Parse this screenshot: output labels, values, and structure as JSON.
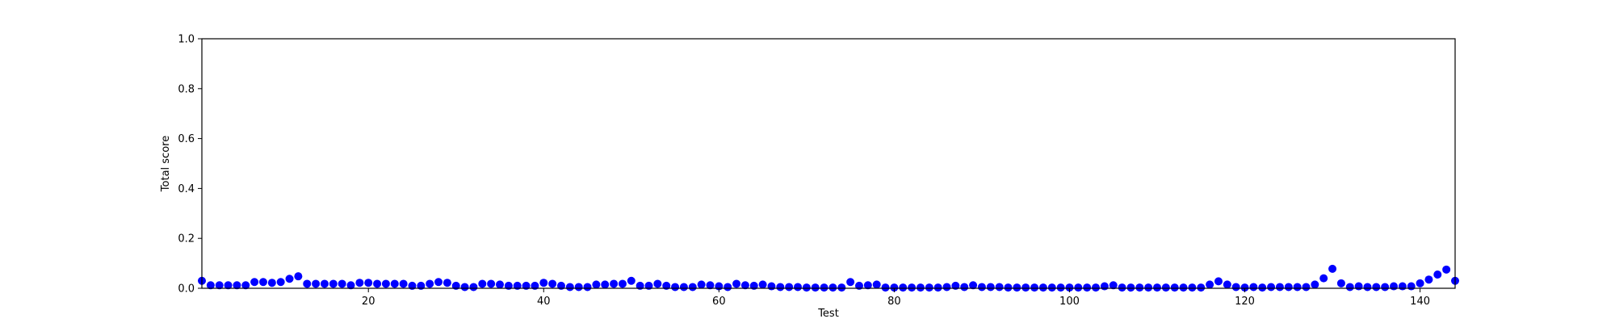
{
  "chart_data": {
    "type": "scatter",
    "title": "",
    "xlabel": "Test",
    "ylabel": "Total score",
    "xlim": [
      1,
      144
    ],
    "ylim": [
      0,
      1.0
    ],
    "x_ticks": [
      20,
      40,
      60,
      80,
      100,
      120,
      140
    ],
    "y_ticks": [
      "0.0",
      "0.2",
      "0.4",
      "0.6",
      "0.8",
      "1.0"
    ],
    "grid": false,
    "legend": "none",
    "marker_color": "#0000ff",
    "x": [
      1,
      2,
      3,
      4,
      5,
      6,
      7,
      8,
      9,
      10,
      11,
      12,
      13,
      14,
      15,
      16,
      17,
      18,
      19,
      20,
      21,
      22,
      23,
      24,
      25,
      26,
      27,
      28,
      29,
      30,
      31,
      32,
      33,
      34,
      35,
      36,
      37,
      38,
      39,
      40,
      41,
      42,
      43,
      44,
      45,
      46,
      47,
      48,
      49,
      50,
      51,
      52,
      53,
      54,
      55,
      56,
      57,
      58,
      59,
      60,
      61,
      62,
      63,
      64,
      65,
      66,
      67,
      68,
      69,
      70,
      71,
      72,
      73,
      74,
      75,
      76,
      77,
      78,
      79,
      80,
      81,
      82,
      83,
      84,
      85,
      86,
      87,
      88,
      89,
      90,
      91,
      92,
      93,
      94,
      95,
      96,
      97,
      98,
      99,
      100,
      101,
      102,
      103,
      104,
      105,
      106,
      107,
      108,
      109,
      110,
      111,
      112,
      113,
      114,
      115,
      116,
      117,
      118,
      119,
      120,
      121,
      122,
      123,
      124,
      125,
      126,
      127,
      128,
      129,
      130,
      131,
      132,
      133,
      134,
      135,
      136,
      137,
      138,
      139,
      140,
      141,
      142,
      143,
      144
    ],
    "y": [
      0.03,
      0.012,
      0.012,
      0.012,
      0.012,
      0.012,
      0.025,
      0.025,
      0.022,
      0.025,
      0.038,
      0.048,
      0.018,
      0.018,
      0.018,
      0.018,
      0.018,
      0.012,
      0.022,
      0.022,
      0.018,
      0.018,
      0.018,
      0.018,
      0.01,
      0.01,
      0.018,
      0.025,
      0.022,
      0.01,
      0.005,
      0.005,
      0.018,
      0.018,
      0.015,
      0.01,
      0.01,
      0.01,
      0.01,
      0.022,
      0.018,
      0.01,
      0.005,
      0.005,
      0.005,
      0.015,
      0.015,
      0.018,
      0.018,
      0.03,
      0.01,
      0.01,
      0.018,
      0.01,
      0.005,
      0.005,
      0.005,
      0.015,
      0.012,
      0.008,
      0.005,
      0.018,
      0.012,
      0.01,
      0.015,
      0.008,
      0.005,
      0.005,
      0.005,
      0.003,
      0.003,
      0.003,
      0.003,
      0.003,
      0.025,
      0.01,
      0.012,
      0.015,
      0.003,
      0.003,
      0.003,
      0.003,
      0.003,
      0.003,
      0.003,
      0.005,
      0.01,
      0.005,
      0.012,
      0.005,
      0.005,
      0.005,
      0.003,
      0.003,
      0.003,
      0.003,
      0.003,
      0.003,
      0.003,
      0.003,
      0.003,
      0.003,
      0.003,
      0.008,
      0.012,
      0.003,
      0.003,
      0.003,
      0.003,
      0.003,
      0.003,
      0.003,
      0.003,
      0.003,
      0.003,
      0.015,
      0.028,
      0.015,
      0.005,
      0.003,
      0.005,
      0.003,
      0.005,
      0.005,
      0.005,
      0.005,
      0.005,
      0.015,
      0.04,
      0.078,
      0.02,
      0.005,
      0.008,
      0.005,
      0.005,
      0.005,
      0.008,
      0.008,
      0.008,
      0.02,
      0.035,
      0.055,
      0.075,
      0.03
    ]
  }
}
